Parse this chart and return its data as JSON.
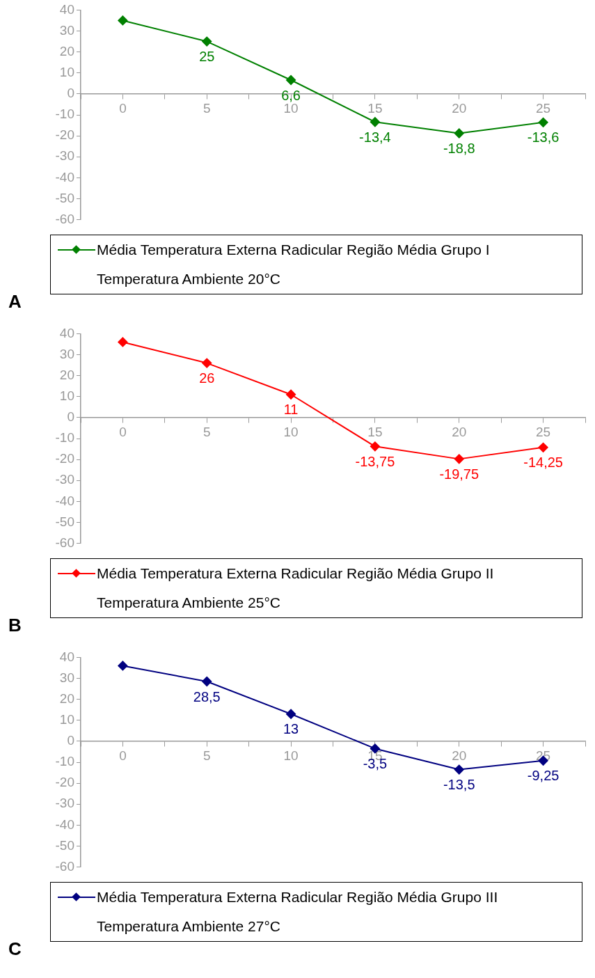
{
  "chart_data": [
    {
      "type": "line",
      "x": [
        0,
        5,
        10,
        15,
        20,
        25
      ],
      "xlim": [
        -2.5,
        27.5
      ],
      "xticks": [
        {
          "value": -2.5,
          "label": null
        },
        0,
        {
          "value": 2.5,
          "label": null
        },
        5,
        {
          "value": 7.5,
          "label": null
        },
        10,
        {
          "value": 12.5,
          "label": null
        },
        15,
        {
          "value": 17.5,
          "label": null
        },
        20,
        {
          "value": 22.5,
          "label": null
        },
        25,
        {
          "value": 27.5,
          "label": null
        }
      ],
      "ylim": [
        -60,
        40
      ],
      "yticks": [
        -60,
        -50,
        -40,
        -30,
        -20,
        -10,
        0,
        10,
        20,
        30,
        40
      ],
      "grid": false,
      "legend": "bottom",
      "marker": "diamond",
      "line_style": "solid",
      "series": [
        {
          "name": "Média Temperatura Externa Radicular Região Média Grupo I\nTemperatura Ambiente 20°C",
          "color": "#008000",
          "values": [
            35,
            25,
            6.6,
            -13.4,
            -18.8,
            -13.6
          ],
          "value_labels": [
            null,
            "25",
            "6,6",
            "-13,4",
            "-18,8",
            "-13,6"
          ]
        }
      ],
      "annotations": [
        "A"
      ]
    },
    {
      "type": "line",
      "x": [
        0,
        5,
        10,
        15,
        20,
        25
      ],
      "xlim": [
        -2.5,
        27.5
      ],
      "xticks": [
        {
          "value": -2.5,
          "label": null
        },
        0,
        {
          "value": 2.5,
          "label": null
        },
        5,
        {
          "value": 7.5,
          "label": null
        },
        10,
        {
          "value": 12.5,
          "label": null
        },
        15,
        {
          "value": 17.5,
          "label": null
        },
        20,
        {
          "value": 22.5,
          "label": null
        },
        25,
        {
          "value": 27.5,
          "label": null
        }
      ],
      "ylim": [
        -60,
        40
      ],
      "yticks": [
        -60,
        -50,
        -40,
        -30,
        -20,
        -10,
        0,
        10,
        20,
        30,
        40
      ],
      "grid": false,
      "legend": "bottom",
      "marker": "diamond",
      "line_style": "solid",
      "series": [
        {
          "name": "Média Temperatura Externa Radicular Região Média Grupo II\nTemperatura Ambiente 25°C",
          "color": "#ff0000",
          "values": [
            36,
            26,
            11,
            -13.75,
            -19.75,
            -14.25
          ],
          "value_labels": [
            null,
            "26",
            "11",
            "-13,75",
            "-19,75",
            "-14,25"
          ]
        }
      ],
      "annotations": [
        "B"
      ]
    },
    {
      "type": "line",
      "x": [
        0,
        5,
        10,
        15,
        20,
        25
      ],
      "xlim": [
        -2.5,
        27.5
      ],
      "xticks": [
        {
          "value": -2.5,
          "label": null
        },
        0,
        {
          "value": 2.5,
          "label": null
        },
        5,
        {
          "value": 7.5,
          "label": null
        },
        10,
        {
          "value": 12.5,
          "label": null
        },
        15,
        {
          "value": 17.5,
          "label": null
        },
        20,
        {
          "value": 22.5,
          "label": null
        },
        25,
        {
          "value": 27.5,
          "label": null
        }
      ],
      "ylim": [
        -60,
        40
      ],
      "yticks": [
        -60,
        -50,
        -40,
        -30,
        -20,
        -10,
        0,
        10,
        20,
        30,
        40
      ],
      "grid": false,
      "legend": "bottom",
      "marker": "diamond",
      "line_style": "solid",
      "series": [
        {
          "name": "Média Temperatura Externa Radicular Região Média Grupo III\nTemperatura Ambiente 27°C",
          "color": "#000080",
          "values": [
            36,
            28.5,
            13,
            -3.5,
            -13.5,
            -9.25
          ],
          "value_labels": [
            null,
            "28,5",
            "13",
            "-3,5",
            "-13,5",
            "-9,25"
          ]
        }
      ],
      "annotations": [
        "C"
      ]
    }
  ]
}
